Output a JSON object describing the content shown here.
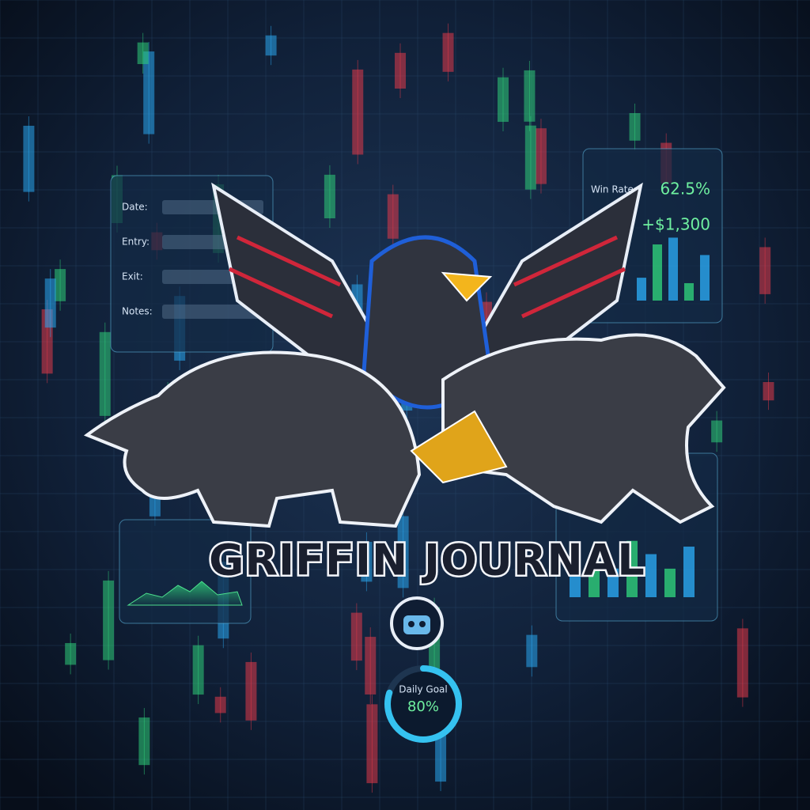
{
  "title": "GRIFFIN JOURNAL",
  "journal_panel": {
    "fields": [
      "Date:",
      "Entry:",
      "Exit:",
      "Notes:"
    ]
  },
  "stats_panel": {
    "win_rate_label": "Win Rate:",
    "win_rate": "62.5%",
    "profit": "+$1,300"
  },
  "gauge": {
    "label": "Daily Goal",
    "value": 80,
    "value_label": "80%"
  }
}
